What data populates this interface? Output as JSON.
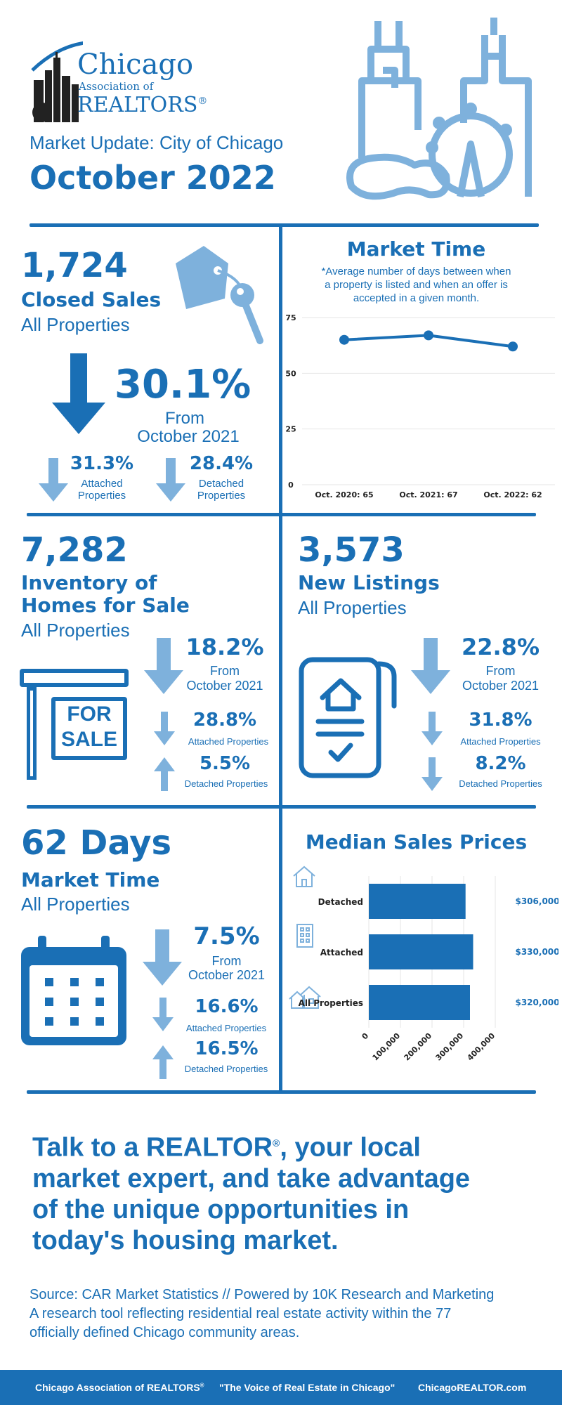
{
  "header": {
    "logo_line1": "Chicago",
    "logo_line2": "Association of",
    "logo_line3": "REALTORS",
    "logo_reg": "®",
    "subtitle": "Market Update: City of Chicago",
    "title": "October 2022"
  },
  "closed_sales": {
    "value": "1,724",
    "label": "Closed Sales",
    "sublabel": "All Properties",
    "change": "30.1%",
    "from_line1": "From",
    "from_line2": "October 2021",
    "attached_change": "31.3%",
    "attached_label_1": "Attached",
    "attached_label_2": "Properties",
    "detached_change": "28.4%",
    "detached_label_1": "Detached",
    "detached_label_2": "Properties"
  },
  "market_time_chart": {
    "title": "Market Time",
    "note_line1": "*Average number of days between when",
    "note_line2": "a property is listed and when an offer is",
    "note_line3": "accepted in a given month."
  },
  "inventory": {
    "value": "7,282",
    "label_line1": "Inventory of",
    "label_line2": "Homes for Sale",
    "sublabel": "All Properties",
    "sign_line1": "FOR",
    "sign_line2": "SALE",
    "change": "18.2%",
    "from_line1": "From",
    "from_line2": "October 2021",
    "attached_change": "28.8%",
    "attached_label": "Attached Properties",
    "detached_change": "5.5%",
    "detached_label": "Detached Properties"
  },
  "new_listings": {
    "value": "3,573",
    "label": "New Listings",
    "sublabel": "All Properties",
    "change": "22.8%",
    "from_line1": "From",
    "from_line2": "October 2021",
    "attached_change": "31.8%",
    "attached_label": "Attached Properties",
    "detached_change": "8.2%",
    "detached_label": "Detached Properties"
  },
  "market_time": {
    "value": "62 Days",
    "label": "Market Time",
    "sublabel": "All Properties",
    "change": "7.5%",
    "from_line1": "From",
    "from_line2": "October 2021",
    "attached_change": "16.6%",
    "attached_label": "Attached Properties",
    "detached_change": "16.5%",
    "detached_label": "Detached Properties"
  },
  "median_prices_chart": {
    "title": "Median Sales Prices"
  },
  "cta": {
    "line1": "Talk to a REALTOR",
    "reg": "®",
    "line1_rest": ", your local",
    "line2": "market expert, and take advantage",
    "line3": "of the unique opportunities in",
    "line4": "today's housing market."
  },
  "source": {
    "line1": "Source: CAR Market Statistics // Powered by 10K Research and Marketing",
    "line2": "A research tool reflecting residential real estate activity within the 77",
    "line3": "officially defined Chicago community areas."
  },
  "footer": {
    "left": "Chicago Association of REALTORS",
    "left_reg": "®",
    "middle": "\"The Voice of Real Estate in Chicago\"",
    "right": "ChicagoREALTOR.com"
  },
  "colors": {
    "primary": "#1a6fb5",
    "light": "#7eb1dc",
    "footer_bg": "#1a6fb5"
  },
  "chart_data": [
    {
      "type": "line",
      "title": "Market Time",
      "categories": [
        "Oct. 2020: 65",
        "Oct. 2021: 67",
        "Oct. 2022: 62"
      ],
      "values": [
        65,
        67,
        62
      ],
      "yticks": [
        0,
        25,
        50,
        75
      ],
      "ylim": [
        0,
        75
      ],
      "grid": true
    },
    {
      "type": "bar",
      "orientation": "horizontal",
      "title": "Median Sales Prices",
      "categories": [
        "Detached",
        "Attached",
        "All Properties"
      ],
      "values": [
        306000,
        330000,
        320000
      ],
      "value_labels": [
        "$306,000",
        "$330,000",
        "$320,000"
      ],
      "xticks": [
        "0",
        "100,000",
        "200,000",
        "300,000",
        "400,000"
      ],
      "xlim": [
        0,
        400000
      ],
      "grid": true
    }
  ]
}
